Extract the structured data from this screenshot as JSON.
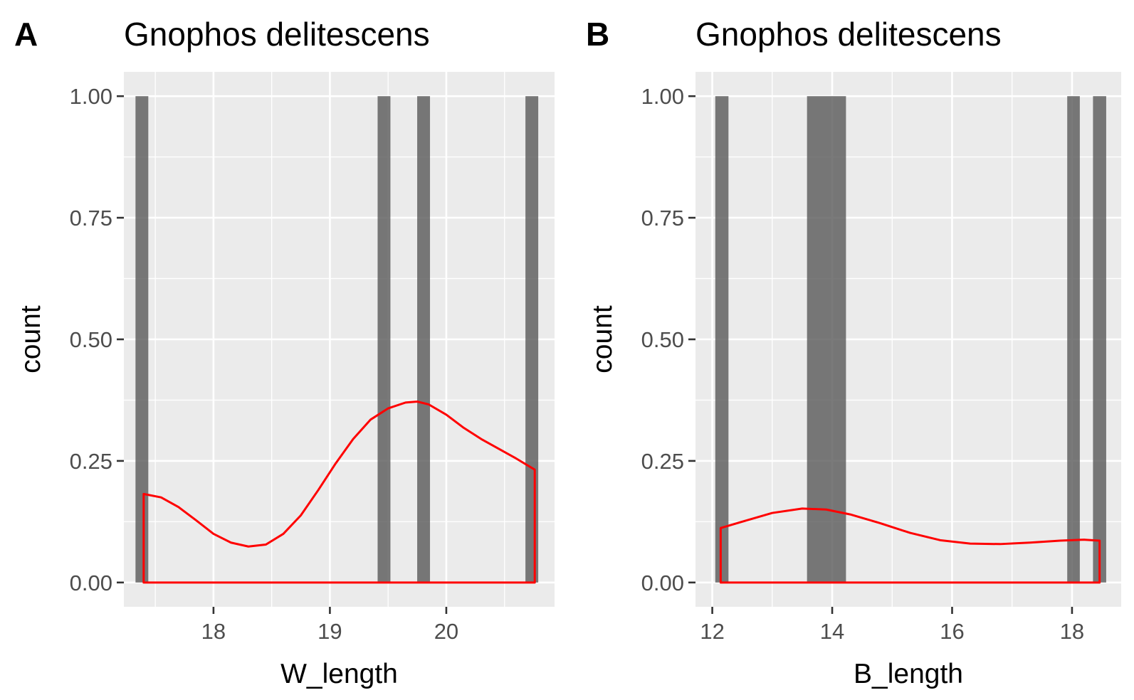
{
  "chart_data": [
    {
      "type": "bar",
      "panel_tag": "A",
      "title": "Gnophos delitescens",
      "xlabel": "W_length",
      "ylabel": "count",
      "xlim": [
        17.23,
        20.93
      ],
      "ylim": [
        -0.05,
        1.05
      ],
      "x_ticks": [
        18,
        19,
        20
      ],
      "x_tick_labels": [
        "18",
        "19",
        "20"
      ],
      "y_ticks": [
        0,
        0.25,
        0.5,
        0.75,
        1.0
      ],
      "y_tick_labels": [
        "0.00",
        "0.25",
        "0.50",
        "0.75",
        "1.00"
      ],
      "grid": true,
      "background": "#ebebeb",
      "bar_color": "#595959",
      "bars": [
        {
          "x_start": 17.33,
          "x_end": 17.44,
          "count": 1
        },
        {
          "x_start": 19.41,
          "x_end": 19.52,
          "count": 1
        },
        {
          "x_start": 19.75,
          "x_end": 19.86,
          "count": 1
        },
        {
          "x_start": 20.68,
          "x_end": 20.79,
          "count": 1
        }
      ],
      "density_color": "#ff0000",
      "density": {
        "x": [
          17.4,
          17.55,
          17.7,
          17.85,
          18.0,
          18.15,
          18.3,
          18.45,
          18.6,
          18.75,
          18.9,
          19.05,
          19.2,
          19.35,
          19.5,
          19.65,
          19.75,
          19.85,
          20.0,
          20.15,
          20.3,
          20.45,
          20.6,
          20.76
        ],
        "y": [
          0.182,
          0.175,
          0.155,
          0.128,
          0.1,
          0.082,
          0.074,
          0.078,
          0.1,
          0.138,
          0.19,
          0.245,
          0.295,
          0.335,
          0.358,
          0.37,
          0.372,
          0.366,
          0.345,
          0.318,
          0.295,
          0.275,
          0.255,
          0.232
        ]
      }
    },
    {
      "type": "bar",
      "panel_tag": "B",
      "title": "Gnophos delitescens",
      "xlabel": "B_length",
      "ylabel": "count",
      "xlim": [
        11.72,
        18.82
      ],
      "ylim": [
        -0.05,
        1.05
      ],
      "x_ticks": [
        12,
        14,
        16,
        18
      ],
      "x_tick_labels": [
        "12",
        "14",
        "16",
        "18"
      ],
      "y_ticks": [
        0,
        0.25,
        0.5,
        0.75,
        1.0
      ],
      "y_tick_labels": [
        "0.00",
        "0.25",
        "0.50",
        "0.75",
        "1.00"
      ],
      "grid": true,
      "background": "#ebebeb",
      "bar_color": "#595959",
      "bars": [
        {
          "x_start": 12.05,
          "x_end": 12.27,
          "count": 1
        },
        {
          "x_start": 13.58,
          "x_end": 14.23,
          "count": 1
        },
        {
          "x_start": 17.92,
          "x_end": 18.13,
          "count": 1
        },
        {
          "x_start": 18.35,
          "x_end": 18.57,
          "count": 1
        }
      ],
      "density_color": "#ff0000",
      "density": {
        "x": [
          12.14,
          12.5,
          13.0,
          13.5,
          13.9,
          14.3,
          14.8,
          15.3,
          15.8,
          16.3,
          16.8,
          17.3,
          17.8,
          18.2,
          18.46
        ],
        "y": [
          0.112,
          0.125,
          0.143,
          0.152,
          0.15,
          0.14,
          0.122,
          0.102,
          0.087,
          0.08,
          0.079,
          0.082,
          0.086,
          0.088,
          0.086
        ]
      }
    }
  ]
}
